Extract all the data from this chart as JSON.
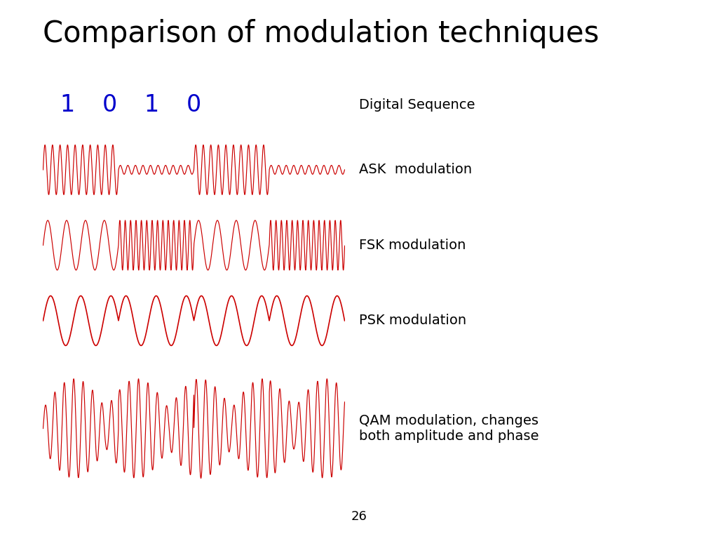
{
  "title": "Comparison of modulation techniques",
  "title_fontsize": 30,
  "title_color": "#000000",
  "title_fontweight": "normal",
  "background_color": "#ffffff",
  "signal_color": "#cc0000",
  "digital_color": "#0000cc",
  "label_fontsize": 14,
  "label_color": "#000000",
  "page_number": "26",
  "digital_label": "Digital Sequence",
  "ask_label": "ASK  modulation",
  "fsk_label": "FSK modulation",
  "psk_label": "PSK modulation",
  "qam_label": "QAM modulation, changes\nboth amplitude and phase",
  "bits": [
    1,
    0,
    1,
    0
  ],
  "f_carrier_ask": 10.0,
  "amp_high_ask": 1.0,
  "amp_low_ask": 0.18,
  "f_low_fsk": 4.0,
  "f_high_fsk": 14.0,
  "f_psk": 2.5,
  "f_qam": 8.0
}
